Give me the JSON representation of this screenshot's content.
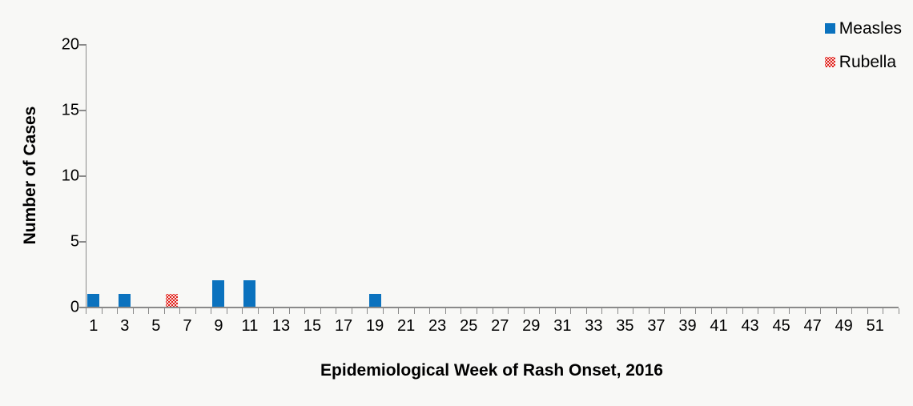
{
  "chart_data": {
    "type": "bar",
    "title": "",
    "xlabel": "Epidemiological Week of Rash Onset, 2016",
    "ylabel": "Number of Cases",
    "x_categories_range": [
      1,
      52
    ],
    "xtick_labels": [
      1,
      3,
      5,
      7,
      9,
      11,
      13,
      15,
      17,
      19,
      21,
      23,
      25,
      27,
      29,
      31,
      33,
      35,
      37,
      39,
      41,
      43,
      45,
      47,
      49,
      51
    ],
    "yticks": [
      0,
      5,
      10,
      15,
      20
    ],
    "ylim": [
      0,
      20
    ],
    "grid": false,
    "legend_position": "top-right",
    "axis_color": "#8a8a8a",
    "background_color": "#f8f8f6",
    "series": [
      {
        "name": "Measles",
        "color": "#0b72be",
        "fill": "solid",
        "points": [
          {
            "week": 1,
            "cases": 1
          },
          {
            "week": 3,
            "cases": 1
          },
          {
            "week": 9,
            "cases": 2
          },
          {
            "week": 11,
            "cases": 2
          },
          {
            "week": 19,
            "cases": 1
          }
        ]
      },
      {
        "name": "Rubella",
        "color": "#e0221c",
        "fill": "dotted",
        "points": [
          {
            "week": 6,
            "cases": 1
          }
        ]
      }
    ]
  }
}
